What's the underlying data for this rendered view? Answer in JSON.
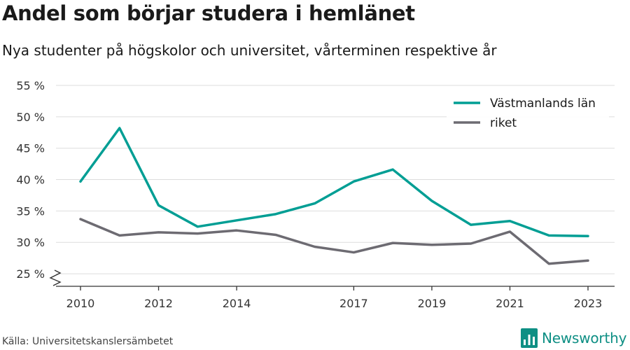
{
  "chart_data": {
    "type": "line",
    "title": "Andel som börjar studera i hemlänet",
    "subtitle": "Nya studenter på högskolor och universitet, vårterminen respektive år",
    "x": [
      2010,
      2011,
      2012,
      2013,
      2014,
      2015,
      2016,
      2017,
      2018,
      2019,
      2020,
      2021,
      2022,
      2023
    ],
    "x_ticks": [
      2010,
      2012,
      2014,
      2017,
      2019,
      2021,
      2023
    ],
    "y_ticks": [
      25,
      30,
      35,
      40,
      45,
      50,
      55
    ],
    "y_tick_suffix": " %",
    "ylim": [
      23,
      55
    ],
    "y_axis_break": true,
    "grid": true,
    "legend_position": "top-right",
    "series": [
      {
        "name": "Västmanlands län",
        "color": "#009e94",
        "values": [
          39.7,
          48.2,
          35.9,
          32.5,
          33.5,
          34.5,
          36.2,
          39.7,
          41.6,
          36.6,
          32.8,
          33.4,
          31.1,
          31.0
        ]
      },
      {
        "name": "riket",
        "color": "#6d6b72",
        "values": [
          33.7,
          31.1,
          31.6,
          31.4,
          31.9,
          31.2,
          29.3,
          28.4,
          29.9,
          29.6,
          29.8,
          31.7,
          26.6,
          27.1
        ]
      }
    ]
  },
  "footer": {
    "source": "Källa: Universitetskanslersämbetet",
    "brand": "Newsworthy",
    "brand_icon": "bar-chart-logo-icon"
  }
}
